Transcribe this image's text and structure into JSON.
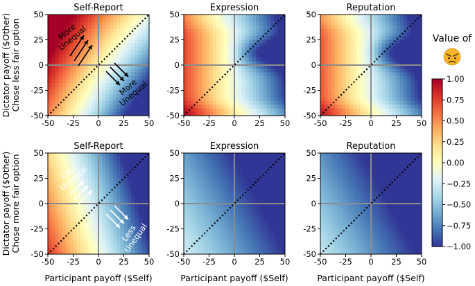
{
  "chart_data": {
    "type": "heatmap",
    "rows": [
      {
        "ylabel_line1": "Dictator payoff ($Other)",
        "ylabel_line2": "Chose less fair option"
      },
      {
        "ylabel_line1": "Dictator payoff ($Other)",
        "ylabel_line2": "Chose more fair option"
      }
    ],
    "columns": [
      "Self-Report",
      "Expression",
      "Reputation"
    ],
    "xlabel": "Participant payoff ($Self)",
    "xlim": [
      -50,
      50
    ],
    "ylim": [
      -50,
      50
    ],
    "xticks": [
      "-50",
      "-25",
      "0",
      "25",
      "50"
    ],
    "yticks": [
      "50",
      "25",
      "0",
      "-25",
      "-50"
    ],
    "diagonal": "y = x (dotted)",
    "reference_lines": "x = 0, y = 0 (gray)",
    "panels": [
      {
        "row": 0,
        "col": 0,
        "title": "Self-Report",
        "mean_value": 0.4,
        "description": "Red upper-left (about 1.0) fading to light yellow at center and blue lower-right edge"
      },
      {
        "row": 0,
        "col": 1,
        "title": "Expression",
        "mean_value": -0.3,
        "description": "Light yellow on left, blue band right of x=0 around y=0..25"
      },
      {
        "row": 0,
        "col": 2,
        "title": "Reputation",
        "mean_value": -0.35,
        "description": "Light left side, blue band right of x=0 around y=0..25"
      },
      {
        "row": 1,
        "col": 0,
        "title": "Self-Report",
        "mean_value": -0.5,
        "description": "Dark blue upper-right, yellow-orange lower-left"
      },
      {
        "row": 1,
        "col": 1,
        "title": "Expression",
        "mean_value": -0.85,
        "description": "Mostly dark blue, lighter blue lower-left"
      },
      {
        "row": 1,
        "col": 2,
        "title": "Reputation",
        "mean_value": -0.85,
        "description": "Mostly dark blue, lighter blue lower-left"
      }
    ],
    "annotations": [
      {
        "panel": 0,
        "text": [
          "More",
          "Unequal"
        ],
        "color": "#000000"
      },
      {
        "panel": 0,
        "text": [
          "More",
          "Unequal"
        ],
        "color": "#000000"
      },
      {
        "panel": 3,
        "text": [
          "Less",
          "Unequal"
        ],
        "color": "#ffffff"
      },
      {
        "panel": 3,
        "text": [
          "Less",
          "Unequal"
        ],
        "color": "#ffffff"
      }
    ],
    "colorbar": {
      "label": "Value of",
      "emoji": "angry-face",
      "range": [
        -1.0,
        1.0
      ],
      "ticks": [
        "1.00",
        "0.75",
        "0.50",
        "0.25",
        "0.00",
        "−0.25",
        "−0.50",
        "−0.75",
        "−1.00"
      ],
      "colormap": "RdYlBu_r"
    }
  }
}
